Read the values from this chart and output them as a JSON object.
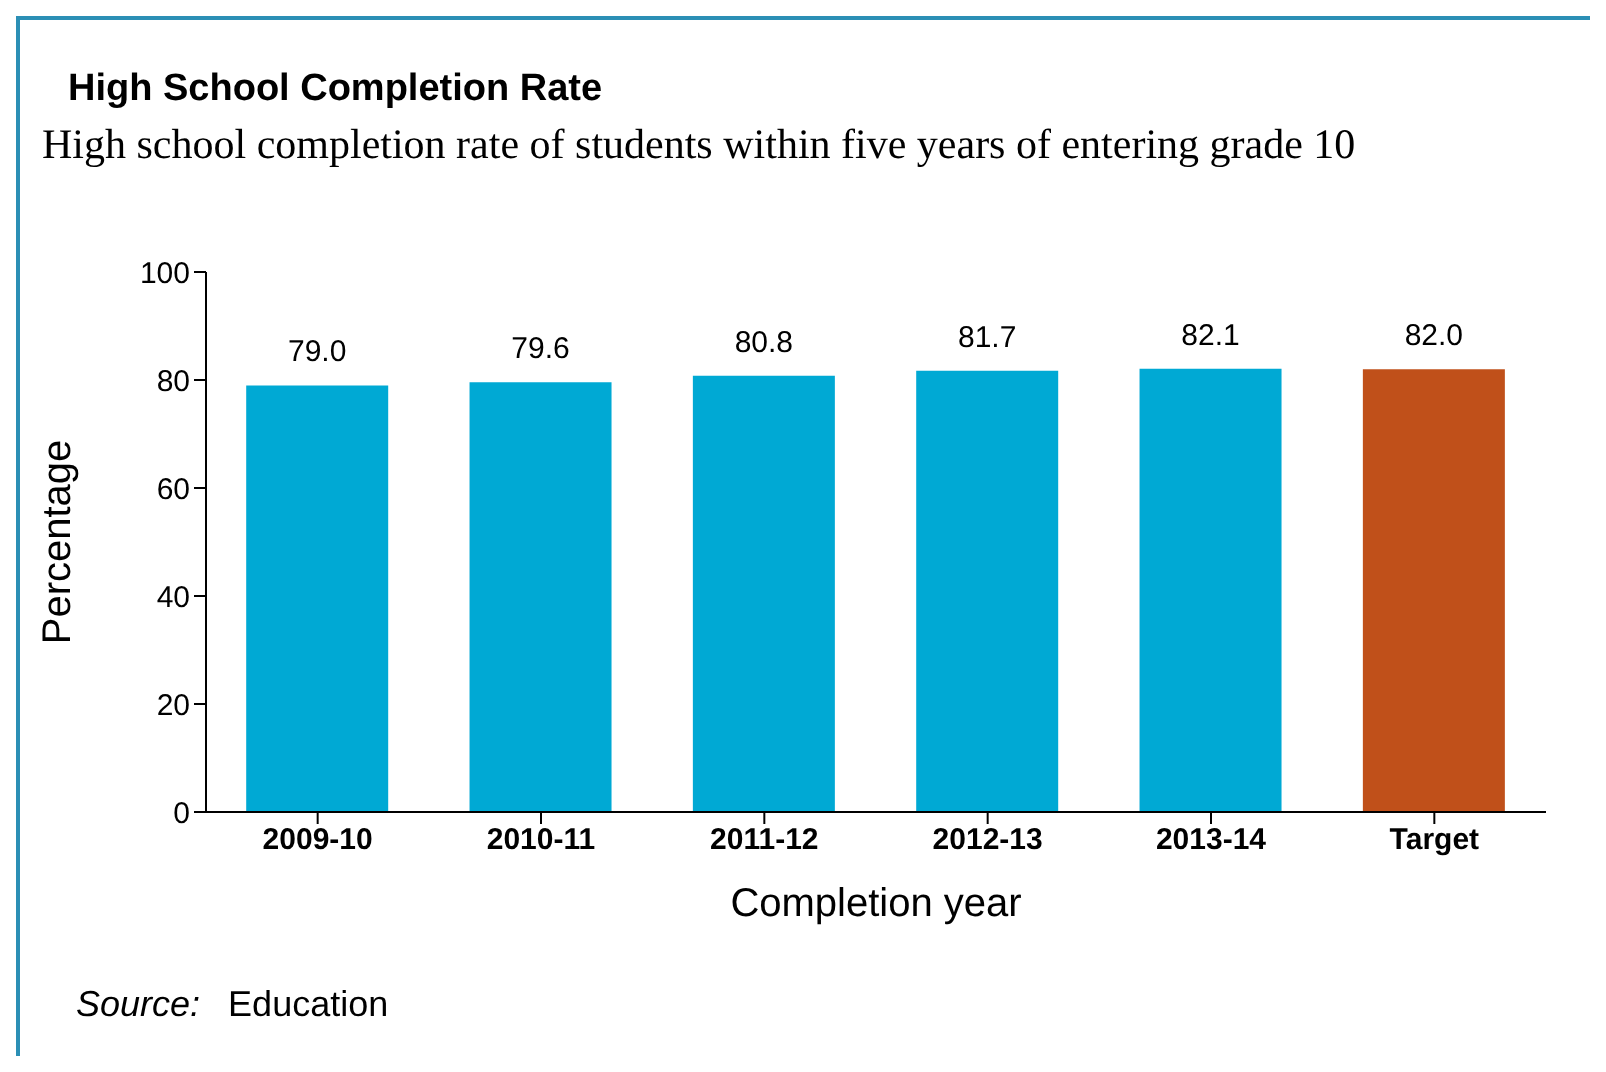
{
  "chart_data": {
    "type": "bar",
    "title": "High School Completion Rate",
    "subtitle": "High school completion rate of students within five years of entering grade 10",
    "xlabel": "Completion year",
    "ylabel": "Percentage",
    "categories": [
      "2009-10",
      "2010-11",
      "2011-12",
      "2012-13",
      "2013-14",
      "Target"
    ],
    "values": [
      79.0,
      79.6,
      80.8,
      81.7,
      82.1,
      82.0
    ],
    "colors": [
      "#00a9d4",
      "#00a9d4",
      "#00a9d4",
      "#00a9d4",
      "#00a9d4",
      "#c0501a"
    ],
    "value_labels": [
      "79.0",
      "79.6",
      "80.8",
      "81.7",
      "82.1",
      "82.0"
    ],
    "ylim": [
      0,
      100
    ],
    "yticks": [
      0,
      20,
      40,
      60,
      80,
      100
    ],
    "grid": false,
    "legend": false,
    "annotations": [
      "Source: Education"
    ]
  }
}
